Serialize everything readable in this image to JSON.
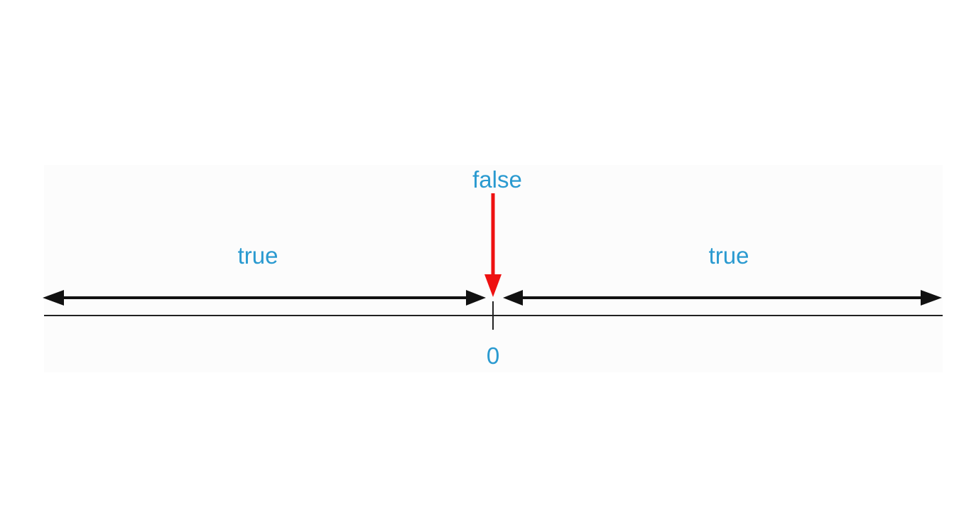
{
  "diagram": {
    "false_label": "false",
    "left_true_label": "true",
    "right_true_label": "true",
    "zero_label": "0"
  },
  "colors": {
    "label": "#2a9ad0",
    "arrow": "#111111",
    "highlight_arrow": "#ee1111",
    "axis": "#222222",
    "panel": "#fcfcfc"
  }
}
